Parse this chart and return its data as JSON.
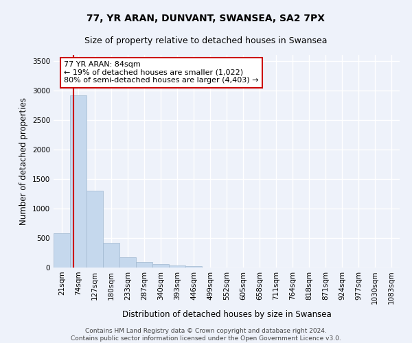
{
  "title": "77, YR ARAN, DUNVANT, SWANSEA, SA2 7PX",
  "subtitle": "Size of property relative to detached houses in Swansea",
  "xlabel": "Distribution of detached houses by size in Swansea",
  "ylabel": "Number of detached properties",
  "bin_labels": [
    "21sqm",
    "74sqm",
    "127sqm",
    "180sqm",
    "233sqm",
    "287sqm",
    "340sqm",
    "393sqm",
    "446sqm",
    "499sqm",
    "552sqm",
    "605sqm",
    "658sqm",
    "711sqm",
    "764sqm",
    "818sqm",
    "871sqm",
    "924sqm",
    "977sqm",
    "1030sqm",
    "1083sqm"
  ],
  "bar_values": [
    580,
    2920,
    1300,
    420,
    175,
    90,
    55,
    35,
    20,
    5,
    2,
    1,
    0,
    0,
    0,
    0,
    0,
    0,
    0,
    0,
    0
  ],
  "bar_color": "#c5d8ed",
  "bar_edge_color": "#a0b8d0",
  "property_line_color": "#cc0000",
  "annotation_text": "77 YR ARAN: 84sqm\n← 19% of detached houses are smaller (1,022)\n80% of semi-detached houses are larger (4,403) →",
  "annotation_box_color": "#ffffff",
  "annotation_border_color": "#cc0000",
  "ylim": [
    0,
    3600
  ],
  "yticks": [
    0,
    500,
    1000,
    1500,
    2000,
    2500,
    3000,
    3500
  ],
  "footer_line1": "Contains HM Land Registry data © Crown copyright and database right 2024.",
  "footer_line2": "Contains public sector information licensed under the Open Government Licence v3.0.",
  "background_color": "#eef2fa",
  "grid_color": "#ffffff",
  "title_fontsize": 10,
  "subtitle_fontsize": 9,
  "axis_label_fontsize": 8.5,
  "tick_fontsize": 7.5,
  "footer_fontsize": 6.5
}
